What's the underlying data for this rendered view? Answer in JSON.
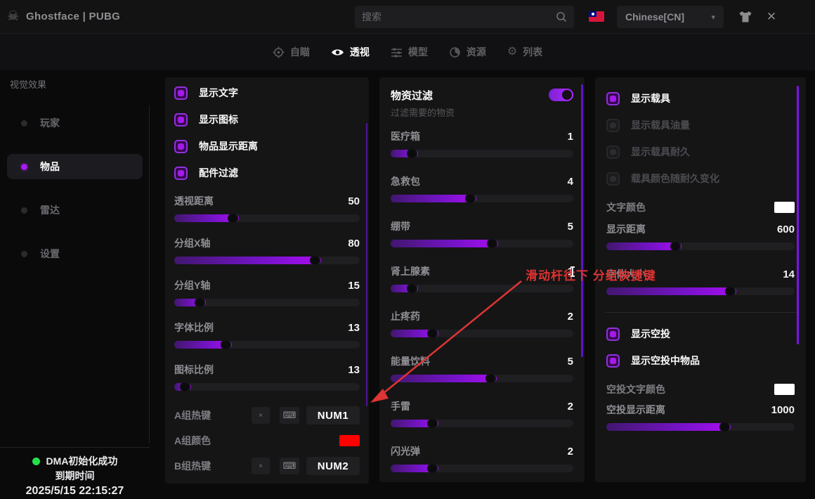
{
  "icons": {
    "skull": "☠",
    "caret": "▾",
    "close": "✕",
    "gear": "⚙",
    "clear_x": "×",
    "keyboard": "⌨"
  },
  "window": {
    "title": "Ghostface | PUBG"
  },
  "topbar": {
    "search_placeholder": "搜索",
    "language": "Chinese[CN]"
  },
  "tabs": {
    "items": [
      {
        "label": "自瞄"
      },
      {
        "label": "透视"
      },
      {
        "label": "模型"
      },
      {
        "label": "资源"
      },
      {
        "label": "列表"
      }
    ],
    "active_label": "透视"
  },
  "sidebar": {
    "header": "视觉效果",
    "items": [
      {
        "label": "玩家"
      },
      {
        "label": "物品"
      },
      {
        "label": "雷达"
      },
      {
        "label": "设置"
      }
    ],
    "active_label": "物品",
    "status": {
      "line1": "DMA初始化成功",
      "line2": "到期时间",
      "line3": "2025/5/15 22:15:27",
      "ok_color": "#23e04b"
    }
  },
  "panel_items": {
    "checkboxes": [
      "显示文字",
      "显示图标",
      "物品显示距离",
      "配件过滤"
    ],
    "sliders": [
      {
        "label": "透视距离",
        "value": "50",
        "percent": 35
      },
      {
        "label": "分组X轴",
        "value": "80",
        "percent": 79
      },
      {
        "label": "分组Y轴",
        "value": "15",
        "percent": 17
      },
      {
        "label": "字体比例",
        "value": "13",
        "percent": 31
      },
      {
        "label": "图标比例",
        "value": "13",
        "percent": 9
      }
    ],
    "hotkey_a": {
      "label": "A组热键",
      "key": "NUM1"
    },
    "color_a": {
      "label": "A组颜色",
      "color": "#ff0000"
    },
    "hotkey_b": {
      "label": "B组热键",
      "key": "NUM2"
    }
  },
  "panel_filter": {
    "header": "物资过滤",
    "subtitle": "过滤需要的物资",
    "toggle_on": true,
    "sliders": [
      {
        "label": "医疗箱",
        "value": "1",
        "percent": 15
      },
      {
        "label": "急救包",
        "value": "4",
        "percent": 47
      },
      {
        "label": "绷带",
        "value": "5",
        "percent": 59
      },
      {
        "label": "肾上腺素",
        "value": "1",
        "percent": 15
      },
      {
        "label": "止疼药",
        "value": "2",
        "percent": 26
      },
      {
        "label": "能量饮料",
        "value": "5",
        "percent": 58
      },
      {
        "label": "手雷",
        "value": "2",
        "percent": 26
      },
      {
        "label": "闪光弹",
        "value": "2",
        "percent": 26
      }
    ]
  },
  "panel_vehicle": {
    "checkbox_main": "显示载具",
    "checkboxes_disabled": [
      "显示载具油量",
      "显示载具耐久",
      "载具颜色随耐久变化"
    ],
    "text_color_label": "文字颜色",
    "text_color": "#ffffff",
    "sliders": [
      {
        "label": "显示距离",
        "value": "600",
        "percent": 40
      },
      {
        "label": "字体大小",
        "value": "14",
        "percent": 69
      }
    ],
    "airdrop": {
      "checkboxes": [
        "显示空投",
        "显示空投中物品"
      ],
      "color_label": "空投文字颜色",
      "color": "#ffffff",
      "slider": {
        "label": "空投显示距离",
        "value": "1000",
        "percent": 66
      }
    }
  },
  "annotation": {
    "text": "滑动杆往下 分组快捷键",
    "color": "#dd3434"
  }
}
